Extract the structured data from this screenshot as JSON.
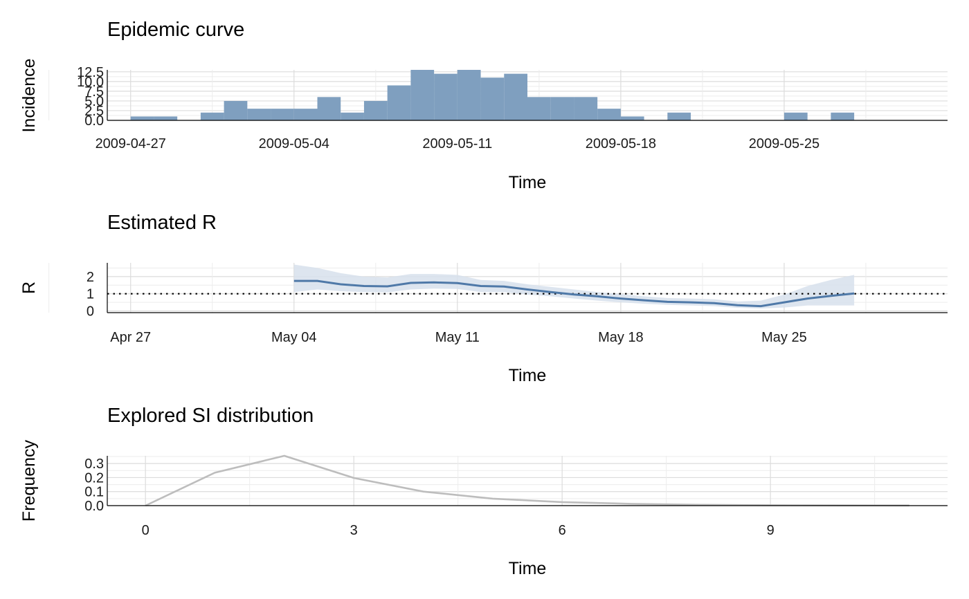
{
  "chart_data": [
    {
      "type": "bar",
      "title": "Epidemic curve",
      "xlabel": "Time",
      "ylabel": "Incidence",
      "x_tick_labels": [
        "2009-04-27",
        "2009-05-04",
        "2009-05-11",
        "2009-05-18",
        "2009-05-25"
      ],
      "x_tick_dates": [
        "2009-04-27",
        "2009-05-04",
        "2009-05-11",
        "2009-05-18",
        "2009-05-25"
      ],
      "y_tick_labels": [
        "0.0",
        "2.5",
        "5.0",
        "7.5",
        "10.0",
        "12.5"
      ],
      "ylim": [
        0,
        13
      ],
      "xlim": [
        "2009-04-26",
        "2009-06-01"
      ],
      "bar_color": "#7f9fbf",
      "bars": [
        {
          "date": "2009-04-27",
          "value": 1
        },
        {
          "date": "2009-04-28",
          "value": 1
        },
        {
          "date": "2009-04-30",
          "value": 2
        },
        {
          "date": "2009-05-01",
          "value": 5
        },
        {
          "date": "2009-05-02",
          "value": 3
        },
        {
          "date": "2009-05-03",
          "value": 3
        },
        {
          "date": "2009-05-04",
          "value": 3
        },
        {
          "date": "2009-05-05",
          "value": 6
        },
        {
          "date": "2009-05-06",
          "value": 2
        },
        {
          "date": "2009-05-07",
          "value": 5
        },
        {
          "date": "2009-05-08",
          "value": 9
        },
        {
          "date": "2009-05-09",
          "value": 13
        },
        {
          "date": "2009-05-10",
          "value": 12
        },
        {
          "date": "2009-05-11",
          "value": 13
        },
        {
          "date": "2009-05-12",
          "value": 11
        },
        {
          "date": "2009-05-13",
          "value": 12
        },
        {
          "date": "2009-05-14",
          "value": 6
        },
        {
          "date": "2009-05-15",
          "value": 6
        },
        {
          "date": "2009-05-16",
          "value": 6
        },
        {
          "date": "2009-05-17",
          "value": 3
        },
        {
          "date": "2009-05-18",
          "value": 1
        },
        {
          "date": "2009-05-20",
          "value": 2
        },
        {
          "date": "2009-05-25",
          "value": 2
        },
        {
          "date": "2009-05-27",
          "value": 2
        }
      ]
    },
    {
      "type": "line",
      "title": "Estimated R",
      "xlabel": "Time",
      "ylabel": "R",
      "x_tick_labels": [
        "Apr 27",
        "May 04",
        "May 11",
        "May 18",
        "May 25"
      ],
      "x_tick_dates": [
        "2009-04-27",
        "2009-05-04",
        "2009-05-11",
        "2009-05-18",
        "2009-05-25"
      ],
      "y_tick_labels": [
        "0",
        "1",
        "2"
      ],
      "ylim": [
        -0.1,
        2.8
      ],
      "xlim": [
        "2009-04-26",
        "2009-06-01"
      ],
      "reference_line": 1,
      "line_color": "#4f79a8",
      "band_color": "#d7e1ec",
      "series": [
        {
          "x": [
            "2009-05-04",
            "2009-05-05",
            "2009-05-06",
            "2009-05-07",
            "2009-05-08",
            "2009-05-09",
            "2009-05-10",
            "2009-05-11",
            "2009-05-12",
            "2009-05-13",
            "2009-05-14",
            "2009-05-15",
            "2009-05-16",
            "2009-05-17",
            "2009-05-18",
            "2009-05-19",
            "2009-05-20",
            "2009-05-21",
            "2009-05-22",
            "2009-05-23",
            "2009-05-24",
            "2009-05-25",
            "2009-05-26",
            "2009-05-27",
            "2009-05-28"
          ],
          "mean": [
            1.75,
            1.75,
            1.55,
            1.45,
            1.43,
            1.63,
            1.66,
            1.62,
            1.45,
            1.42,
            1.25,
            1.1,
            0.96,
            0.85,
            0.72,
            0.62,
            0.53,
            0.5,
            0.45,
            0.33,
            0.28,
            0.5,
            0.72,
            0.88,
            1.02
          ],
          "lower": [
            1.1,
            1.25,
            1.15,
            1.1,
            1.08,
            1.25,
            1.3,
            1.28,
            1.1,
            1.1,
            0.95,
            0.85,
            0.72,
            0.6,
            0.5,
            0.42,
            0.35,
            0.32,
            0.28,
            0.18,
            0.14,
            0.2,
            0.32,
            0.32,
            0.32
          ],
          "upper": [
            2.7,
            2.5,
            2.2,
            2.0,
            1.95,
            2.15,
            2.15,
            2.1,
            1.8,
            1.75,
            1.55,
            1.4,
            1.25,
            1.1,
            0.98,
            0.85,
            0.75,
            0.72,
            0.68,
            0.55,
            0.6,
            0.95,
            1.45,
            1.8,
            2.1
          ]
        }
      ]
    },
    {
      "type": "line",
      "title": "Explored SI distribution",
      "xlabel": "Time",
      "ylabel": "Frequency",
      "x_tick_labels": [
        "0",
        "3",
        "6",
        "9"
      ],
      "x_ticks": [
        0,
        3,
        6,
        9
      ],
      "y_tick_labels": [
        "0.0",
        "0.1",
        "0.2",
        "0.3"
      ],
      "ylim": [
        0,
        0.355
      ],
      "xlim": [
        -0.55,
        11.55
      ],
      "line_color": "#bdbdbd",
      "series": [
        {
          "x": [
            0,
            1,
            2,
            3,
            4,
            5,
            6,
            7,
            8,
            9,
            10,
            11
          ],
          "y": [
            0.0,
            0.235,
            0.355,
            0.197,
            0.1,
            0.05,
            0.025,
            0.013,
            0.006,
            0.003,
            0.0015,
            0.0008
          ]
        }
      ]
    }
  ]
}
